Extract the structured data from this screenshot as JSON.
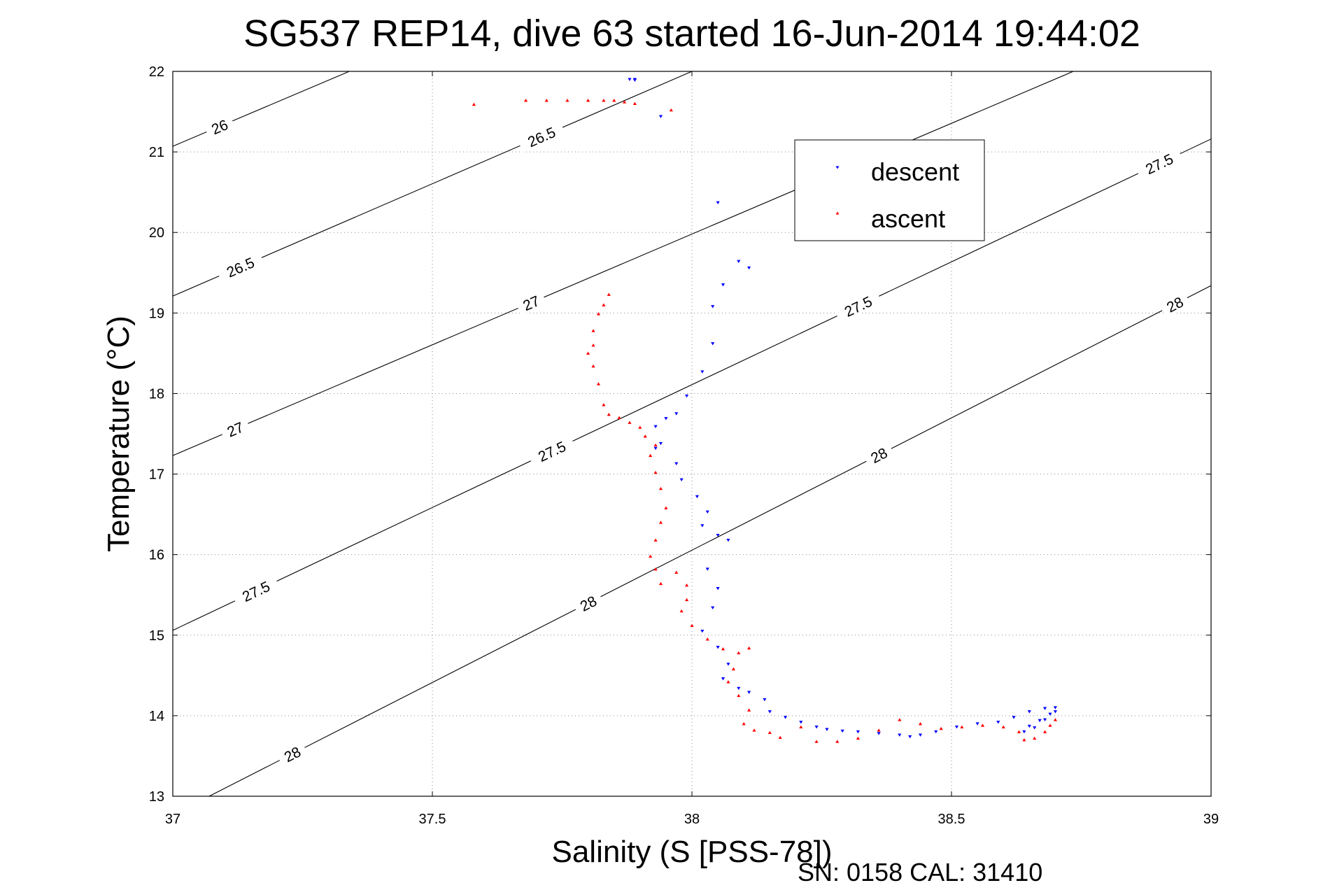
{
  "title": "SG537 REP14, dive 63 started 16-Jun-2014 19:44:02",
  "footer": "SN: 0158  CAL: 31410",
  "colors": {
    "descent": "#0000ff",
    "ascent": "#ff0000",
    "contour": "#000000",
    "grid": "#8a8a8a"
  },
  "chart_data": {
    "type": "scatter",
    "title": "SG537 REP14, dive 63 started 16-Jun-2014 19:44:02",
    "xlabel": "Salinity (S [PSS-78])",
    "ylabel": "Temperature (°C)",
    "xlim": [
      37,
      39
    ],
    "ylim": [
      13,
      22
    ],
    "xticks": [
      "37",
      "37.5",
      "38",
      "38.5",
      "39"
    ],
    "yticks": [
      "13",
      "14",
      "15",
      "16",
      "17",
      "18",
      "19",
      "20",
      "21",
      "22"
    ],
    "grid": true,
    "legend_position": "upper-right",
    "legend": [
      "descent",
      "ascent"
    ],
    "contours": [
      {
        "label": "26",
        "s": [
          37.0,
          37.34
        ],
        "t": [
          21.07,
          22.0
        ],
        "label_at": [
          [
            37.09,
            21.25
          ]
        ]
      },
      {
        "label": "26.5",
        "s": [
          37.0,
          38.0
        ],
        "t": [
          19.21,
          22.0
        ],
        "label_at": [
          [
            37.13,
            19.46
          ],
          [
            37.71,
            21.12
          ]
        ]
      },
      {
        "label": "27",
        "s": [
          37.0,
          39.0
        ],
        "t": [
          17.23,
          22.73
        ],
        "label_at": [
          [
            37.12,
            17.45
          ],
          [
            37.69,
            19.27
          ]
        ]
      },
      {
        "label": "27.5",
        "s": [
          37.0,
          39.0
        ],
        "t": [
          15.06,
          21.16
        ],
        "label_at": [
          [
            37.16,
            15.55
          ],
          [
            37.73,
            17.4
          ],
          [
            38.32,
            19.2
          ],
          [
            38.9,
            20.85
          ]
        ]
      },
      {
        "label": "28",
        "s": [
          37.07,
          39.0
        ],
        "t": [
          13.0,
          19.34
        ],
        "label_at": [
          [
            37.23,
            13.5
          ],
          [
            37.8,
            15.4
          ],
          [
            38.36,
            17.35
          ],
          [
            38.93,
            19.1
          ]
        ]
      }
    ],
    "series": [
      {
        "name": "descent",
        "marker": "triangle-down",
        "points": [
          [
            37.88,
            21.9
          ],
          [
            37.89,
            21.89
          ],
          [
            37.89,
            21.9
          ],
          [
            37.94,
            21.44
          ],
          [
            38.05,
            20.37
          ],
          [
            38.09,
            19.64
          ],
          [
            38.11,
            19.56
          ],
          [
            38.06,
            19.35
          ],
          [
            38.04,
            19.08
          ],
          [
            38.04,
            18.62
          ],
          [
            38.02,
            18.27
          ],
          [
            37.99,
            17.97
          ],
          [
            37.97,
            17.75
          ],
          [
            37.95,
            17.69
          ],
          [
            37.93,
            17.59
          ],
          [
            37.94,
            17.38
          ],
          [
            37.93,
            17.32
          ],
          [
            37.97,
            17.13
          ],
          [
            37.98,
            16.93
          ],
          [
            38.01,
            16.72
          ],
          [
            38.03,
            16.53
          ],
          [
            38.02,
            16.36
          ],
          [
            38.05,
            16.24
          ],
          [
            38.07,
            16.18
          ],
          [
            38.03,
            15.82
          ],
          [
            38.05,
            15.58
          ],
          [
            38.04,
            15.34
          ],
          [
            38.02,
            15.05
          ],
          [
            38.05,
            14.85
          ],
          [
            38.07,
            14.64
          ],
          [
            38.06,
            14.46
          ],
          [
            38.09,
            14.34
          ],
          [
            38.11,
            14.29
          ],
          [
            38.14,
            14.2
          ],
          [
            38.15,
            14.05
          ],
          [
            38.18,
            13.98
          ],
          [
            38.21,
            13.92
          ],
          [
            38.24,
            13.86
          ],
          [
            38.26,
            13.83
          ],
          [
            38.29,
            13.81
          ],
          [
            38.32,
            13.8
          ],
          [
            38.36,
            13.78
          ],
          [
            38.4,
            13.76
          ],
          [
            38.42,
            13.74
          ],
          [
            38.44,
            13.76
          ],
          [
            38.47,
            13.8
          ],
          [
            38.51,
            13.86
          ],
          [
            38.55,
            13.9
          ],
          [
            38.59,
            13.92
          ],
          [
            38.62,
            13.98
          ],
          [
            38.65,
            14.05
          ],
          [
            38.68,
            14.09
          ],
          [
            38.7,
            14.1
          ],
          [
            38.69,
            14.02
          ],
          [
            38.67,
            13.94
          ],
          [
            38.65,
            13.87
          ],
          [
            38.64,
            13.8
          ],
          [
            38.66,
            13.85
          ],
          [
            38.68,
            13.95
          ],
          [
            38.7,
            14.05
          ]
        ]
      },
      {
        "name": "ascent",
        "marker": "triangle-up",
        "points": [
          [
            37.58,
            21.59
          ],
          [
            37.68,
            21.64
          ],
          [
            37.72,
            21.64
          ],
          [
            37.76,
            21.64
          ],
          [
            37.8,
            21.64
          ],
          [
            37.83,
            21.64
          ],
          [
            37.85,
            21.64
          ],
          [
            37.87,
            21.62
          ],
          [
            37.89,
            21.6
          ],
          [
            37.96,
            21.52
          ],
          [
            37.84,
            19.23
          ],
          [
            37.83,
            19.1
          ],
          [
            37.82,
            18.99
          ],
          [
            37.81,
            18.78
          ],
          [
            37.81,
            18.6
          ],
          [
            37.8,
            18.5
          ],
          [
            37.81,
            18.34
          ],
          [
            37.82,
            18.12
          ],
          [
            37.83,
            17.86
          ],
          [
            37.84,
            17.74
          ],
          [
            37.86,
            17.7
          ],
          [
            37.88,
            17.64
          ],
          [
            37.9,
            17.58
          ],
          [
            37.91,
            17.47
          ],
          [
            37.93,
            17.36
          ],
          [
            37.92,
            17.23
          ],
          [
            37.93,
            17.02
          ],
          [
            37.94,
            16.82
          ],
          [
            37.95,
            16.58
          ],
          [
            37.94,
            16.4
          ],
          [
            37.93,
            16.18
          ],
          [
            37.92,
            15.98
          ],
          [
            37.93,
            15.82
          ],
          [
            37.94,
            15.64
          ],
          [
            37.97,
            15.78
          ],
          [
            37.99,
            15.62
          ],
          [
            37.99,
            15.44
          ],
          [
            37.98,
            15.3
          ],
          [
            38.0,
            15.12
          ],
          [
            38.03,
            14.95
          ],
          [
            38.06,
            14.83
          ],
          [
            38.09,
            14.78
          ],
          [
            38.11,
            14.84
          ],
          [
            38.08,
            14.58
          ],
          [
            38.07,
            14.42
          ],
          [
            38.09,
            14.25
          ],
          [
            38.11,
            14.07
          ],
          [
            38.1,
            13.9
          ],
          [
            38.12,
            13.82
          ],
          [
            38.15,
            13.79
          ],
          [
            38.17,
            13.73
          ],
          [
            38.21,
            13.86
          ],
          [
            38.24,
            13.68
          ],
          [
            38.28,
            13.68
          ],
          [
            38.32,
            13.72
          ],
          [
            38.36,
            13.82
          ],
          [
            38.4,
            13.95
          ],
          [
            38.44,
            13.9
          ],
          [
            38.48,
            13.84
          ],
          [
            38.52,
            13.86
          ],
          [
            38.56,
            13.88
          ],
          [
            38.6,
            13.86
          ],
          [
            38.63,
            13.8
          ],
          [
            38.64,
            13.7
          ],
          [
            38.66,
            13.72
          ],
          [
            38.68,
            13.8
          ],
          [
            38.69,
            13.88
          ],
          [
            38.7,
            13.95
          ]
        ]
      }
    ]
  }
}
